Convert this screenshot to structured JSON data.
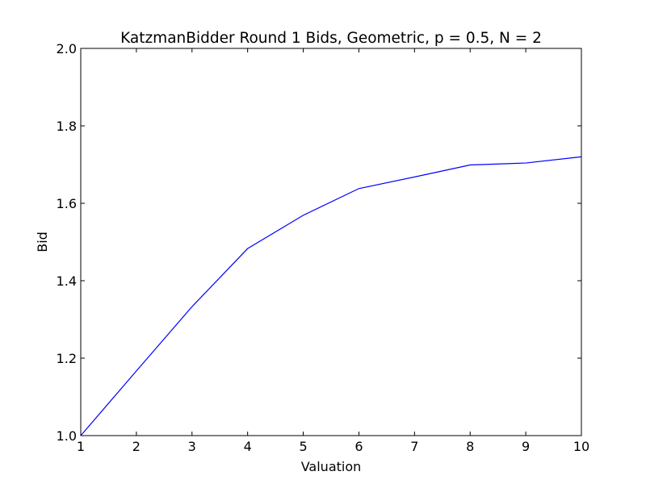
{
  "chart_data": {
    "type": "line",
    "title": "KatzmanBidder Round 1 Bids, Geometric, p = 0.5, N = 2",
    "xlabel": "Valuation",
    "ylabel": "Bid",
    "xlim": [
      1,
      10
    ],
    "ylim": [
      1.0,
      2.0
    ],
    "xticks": [
      "1",
      "2",
      "3",
      "4",
      "5",
      "6",
      "7",
      "8",
      "9",
      "10"
    ],
    "yticks": [
      "1.0",
      "1.2",
      "1.4",
      "1.6",
      "1.8",
      "2.0"
    ],
    "grid": false,
    "series": [
      {
        "color": "#0000ff",
        "x": [
          1,
          2,
          3,
          4,
          5,
          6,
          7,
          8,
          9,
          10
        ],
        "y": [
          1.0,
          1.167,
          1.333,
          1.483,
          1.569,
          1.638,
          1.668,
          1.699,
          1.704,
          1.72
        ]
      }
    ]
  }
}
